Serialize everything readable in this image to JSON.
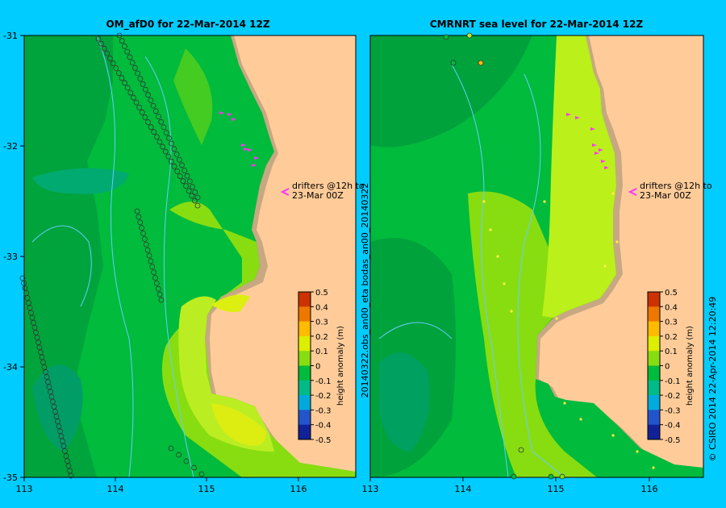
{
  "panels": [
    {
      "title": "OM_afD0 for 22-Mar-2014 12Z",
      "annotation": [
        "drifters @12h to",
        "23-Mar 00Z"
      ]
    },
    {
      "title": "CMRNRT sea level  for 22-Mar-2014 12Z",
      "annotation": [
        "drifters @12h to",
        "23-Mar 00Z"
      ]
    }
  ],
  "x_ticks": [
    "113",
    "114",
    "115",
    "116"
  ],
  "y_ticks": [
    "-31",
    "-32",
    "-33",
    "-34",
    "-35"
  ],
  "side_label": "20140322.obs_an00_eta    bodas_an00_20140322",
  "credit": "© CSIRO 2014   22-Apr-2014 12:20:49",
  "colorbar": {
    "title": "height anomaly (m)",
    "ticks": [
      "0.5",
      "0.4",
      "0.3",
      "0.2",
      "0.1",
      "0",
      "-0.1",
      "-0.2",
      "-0.3",
      "-0.4",
      "-0.5"
    ]
  },
  "colors": {
    "background": "#00ccff",
    "land": "#ffcc99",
    "shelf": "#c8a882",
    "drifter": "#ff33ff"
  }
}
